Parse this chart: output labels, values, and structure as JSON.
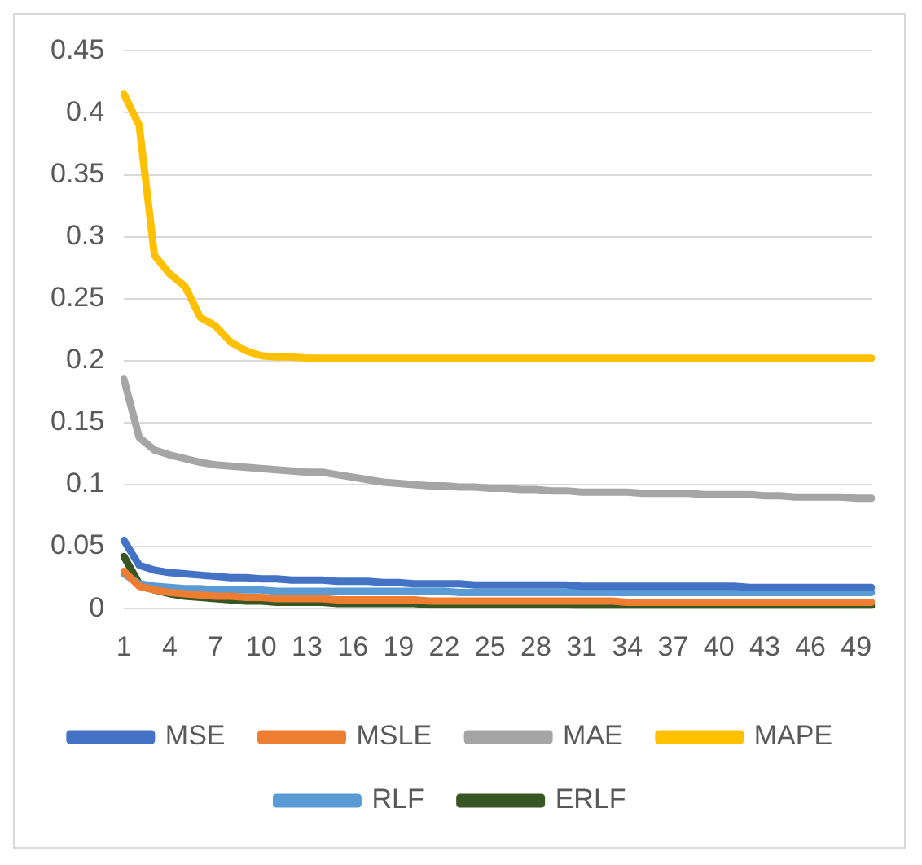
{
  "chart_data": {
    "type": "line",
    "categories": [
      "1",
      null,
      null,
      "4",
      null,
      null,
      "7",
      null,
      null,
      "10",
      null,
      null,
      "13",
      null,
      null,
      "16",
      null,
      null,
      "19",
      null,
      null,
      "22",
      null,
      null,
      "25",
      null,
      null,
      "28",
      null,
      null,
      "31",
      null,
      null,
      "34",
      null,
      null,
      "37",
      null,
      null,
      "40",
      null,
      null,
      "43",
      null,
      null,
      "46",
      null,
      null,
      "49",
      null
    ],
    "series": [
      {
        "name": "MSE",
        "color": "#4472c4",
        "values": [
          0.055,
          0.035,
          0.031,
          0.029,
          0.028,
          0.027,
          0.026,
          0.025,
          0.025,
          0.024,
          0.024,
          0.023,
          0.023,
          0.023,
          0.022,
          0.022,
          0.022,
          0.021,
          0.021,
          0.02,
          0.02,
          0.02,
          0.02,
          0.019,
          0.019,
          0.019,
          0.019,
          0.019,
          0.019,
          0.019,
          0.018,
          0.018,
          0.018,
          0.018,
          0.018,
          0.018,
          0.018,
          0.018,
          0.018,
          0.018,
          0.018,
          0.017,
          0.017,
          0.017,
          0.017,
          0.017,
          0.017,
          0.017,
          0.017,
          0.017
        ]
      },
      {
        "name": "MSLE",
        "color": "#ed7d31",
        "values": [
          0.03,
          0.018,
          0.015,
          0.013,
          0.012,
          0.011,
          0.01,
          0.01,
          0.009,
          0.009,
          0.008,
          0.008,
          0.008,
          0.008,
          0.007,
          0.007,
          0.007,
          0.007,
          0.007,
          0.007,
          0.006,
          0.006,
          0.006,
          0.006,
          0.006,
          0.006,
          0.006,
          0.006,
          0.006,
          0.006,
          0.006,
          0.006,
          0.006,
          0.005,
          0.005,
          0.005,
          0.005,
          0.005,
          0.005,
          0.005,
          0.005,
          0.005,
          0.005,
          0.005,
          0.005,
          0.005,
          0.005,
          0.005,
          0.005,
          0.005
        ]
      },
      {
        "name": "MAE",
        "color": "#a5a5a5",
        "values": [
          0.185,
          0.138,
          0.128,
          0.124,
          0.121,
          0.118,
          0.116,
          0.115,
          0.114,
          0.113,
          0.112,
          0.111,
          0.11,
          0.11,
          0.108,
          0.106,
          0.104,
          0.102,
          0.101,
          0.1,
          0.099,
          0.099,
          0.098,
          0.098,
          0.097,
          0.097,
          0.096,
          0.096,
          0.095,
          0.095,
          0.094,
          0.094,
          0.094,
          0.094,
          0.093,
          0.093,
          0.093,
          0.093,
          0.092,
          0.092,
          0.092,
          0.092,
          0.091,
          0.091,
          0.09,
          0.09,
          0.09,
          0.09,
          0.089,
          0.089
        ]
      },
      {
        "name": "MAPE",
        "color": "#ffc000",
        "values": [
          0.415,
          0.39,
          0.285,
          0.27,
          0.26,
          0.235,
          0.228,
          0.215,
          0.208,
          0.204,
          0.203,
          0.203,
          0.202,
          0.202,
          0.202,
          0.202,
          0.202,
          0.202,
          0.202,
          0.202,
          0.202,
          0.202,
          0.202,
          0.202,
          0.202,
          0.202,
          0.202,
          0.202,
          0.202,
          0.202,
          0.202,
          0.202,
          0.202,
          0.202,
          0.202,
          0.202,
          0.202,
          0.202,
          0.202,
          0.202,
          0.202,
          0.202,
          0.202,
          0.202,
          0.202,
          0.202,
          0.202,
          0.202,
          0.202,
          0.202
        ]
      },
      {
        "name": "RLF",
        "color": "#5b9bd5",
        "values": [
          0.028,
          0.02,
          0.018,
          0.017,
          0.016,
          0.016,
          0.015,
          0.015,
          0.015,
          0.015,
          0.014,
          0.014,
          0.014,
          0.014,
          0.014,
          0.014,
          0.014,
          0.014,
          0.014,
          0.014,
          0.014,
          0.014,
          0.013,
          0.013,
          0.013,
          0.013,
          0.013,
          0.013,
          0.013,
          0.013,
          0.013,
          0.013,
          0.013,
          0.013,
          0.013,
          0.013,
          0.013,
          0.013,
          0.013,
          0.013,
          0.013,
          0.013,
          0.013,
          0.013,
          0.013,
          0.013,
          0.013,
          0.013,
          0.013,
          0.013
        ]
      },
      {
        "name": "ERLF",
        "color": "#375623",
        "values": [
          0.042,
          0.02,
          0.015,
          0.012,
          0.01,
          0.009,
          0.008,
          0.007,
          0.006,
          0.006,
          0.005,
          0.005,
          0.005,
          0.005,
          0.004,
          0.004,
          0.004,
          0.004,
          0.004,
          0.004,
          0.003,
          0.003,
          0.003,
          0.003,
          0.003,
          0.003,
          0.003,
          0.003,
          0.003,
          0.003,
          0.002,
          0.002,
          0.002,
          0.002,
          0.002,
          0.002,
          0.002,
          0.002,
          0.002,
          0.002,
          0.002,
          0.002,
          0.002,
          0.002,
          0.002,
          0.002,
          0.002,
          0.002,
          0.002,
          0.002
        ]
      }
    ],
    "ylim": [
      0,
      0.45
    ],
    "yticks": [
      0,
      0.05,
      0.1,
      0.15,
      0.2,
      0.25,
      0.3,
      0.35,
      0.4,
      0.45
    ],
    "grid": "y",
    "legend": "bottom",
    "marker": "none",
    "line_style": "solid"
  }
}
